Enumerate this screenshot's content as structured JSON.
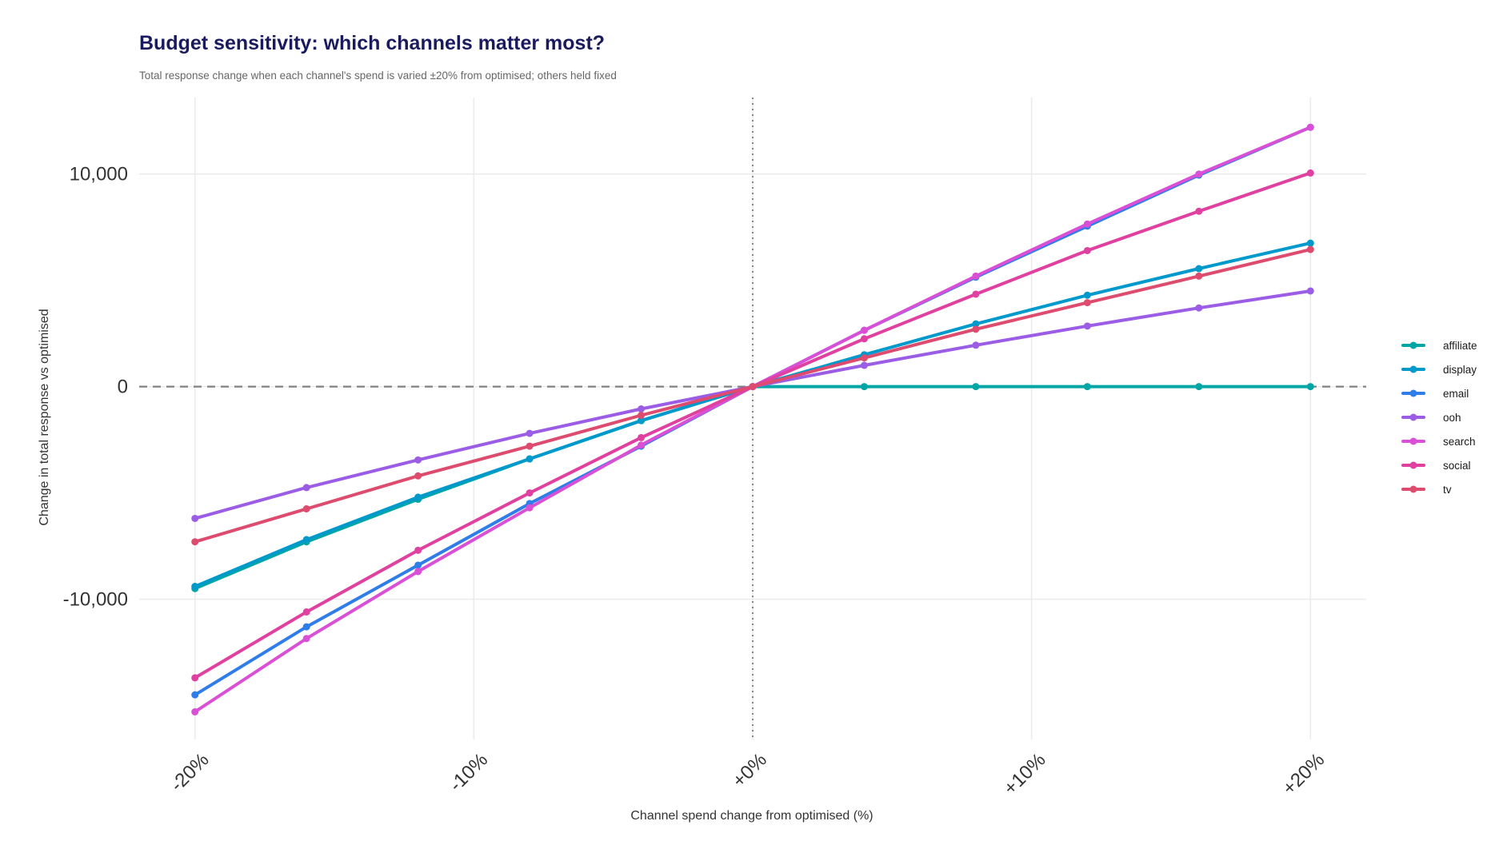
{
  "chart_data": {
    "type": "line",
    "title": "Budget sensitivity: which channels matter most?",
    "subtitle": "Total response change when each channel's spend is varied ±20% from optimised; others held fixed",
    "xlabel": "Channel spend change from optimised (%)",
    "ylabel": "Change in total response vs optimised",
    "x": [
      -20,
      -16,
      -12,
      -8,
      -4,
      0,
      4,
      8,
      12,
      16,
      20
    ],
    "xlim": [
      -22,
      22
    ],
    "ylim": [
      -16600,
      13600
    ],
    "x_ticks": [
      -20,
      -10,
      0,
      10,
      20
    ],
    "x_tick_labels": [
      "-20%",
      "-10%",
      "+0%",
      "+10%",
      "+20%"
    ],
    "y_ticks": [
      -10000,
      0,
      10000
    ],
    "y_tick_labels": [
      "-10,000",
      "0",
      "10,000"
    ],
    "reference_lines": {
      "horizontal_y": 0,
      "vertical_x": 0
    },
    "grid": true,
    "legend_position": "right",
    "series": [
      {
        "name": "affiliate",
        "color": "#00a6a6",
        "values": [
          -9500,
          -7300,
          -5300,
          -3400,
          -1600,
          0,
          0,
          0,
          0,
          0,
          0
        ]
      },
      {
        "name": "display",
        "color": "#0099cc",
        "values": [
          -9400,
          -7200,
          -5200,
          -3400,
          -1600,
          0,
          1500,
          2950,
          4300,
          5550,
          6750
        ]
      },
      {
        "name": "email",
        "color": "#2f7de8",
        "values": [
          -14500,
          -11300,
          -8400,
          -5500,
          -2800,
          0,
          2650,
          5150,
          7550,
          9950,
          12200
        ]
      },
      {
        "name": "ooh",
        "color": "#9b5de5",
        "values": [
          -6200,
          -4750,
          -3450,
          -2200,
          -1050,
          0,
          1000,
          1950,
          2850,
          3700,
          4500
        ]
      },
      {
        "name": "search",
        "color": "#d94fd6",
        "values": [
          -15300,
          -11850,
          -8700,
          -5700,
          -2750,
          0,
          2650,
          5200,
          7650,
          10000,
          12200
        ]
      },
      {
        "name": "social",
        "color": "#e040a0",
        "values": [
          -13700,
          -10600,
          -7700,
          -5000,
          -2400,
          0,
          2250,
          4350,
          6400,
          8250,
          10050
        ]
      },
      {
        "name": "tv",
        "color": "#dd4b6e",
        "values": [
          -7300,
          -5750,
          -4200,
          -2800,
          -1350,
          0,
          1350,
          2700,
          3950,
          5200,
          6450
        ]
      }
    ]
  }
}
